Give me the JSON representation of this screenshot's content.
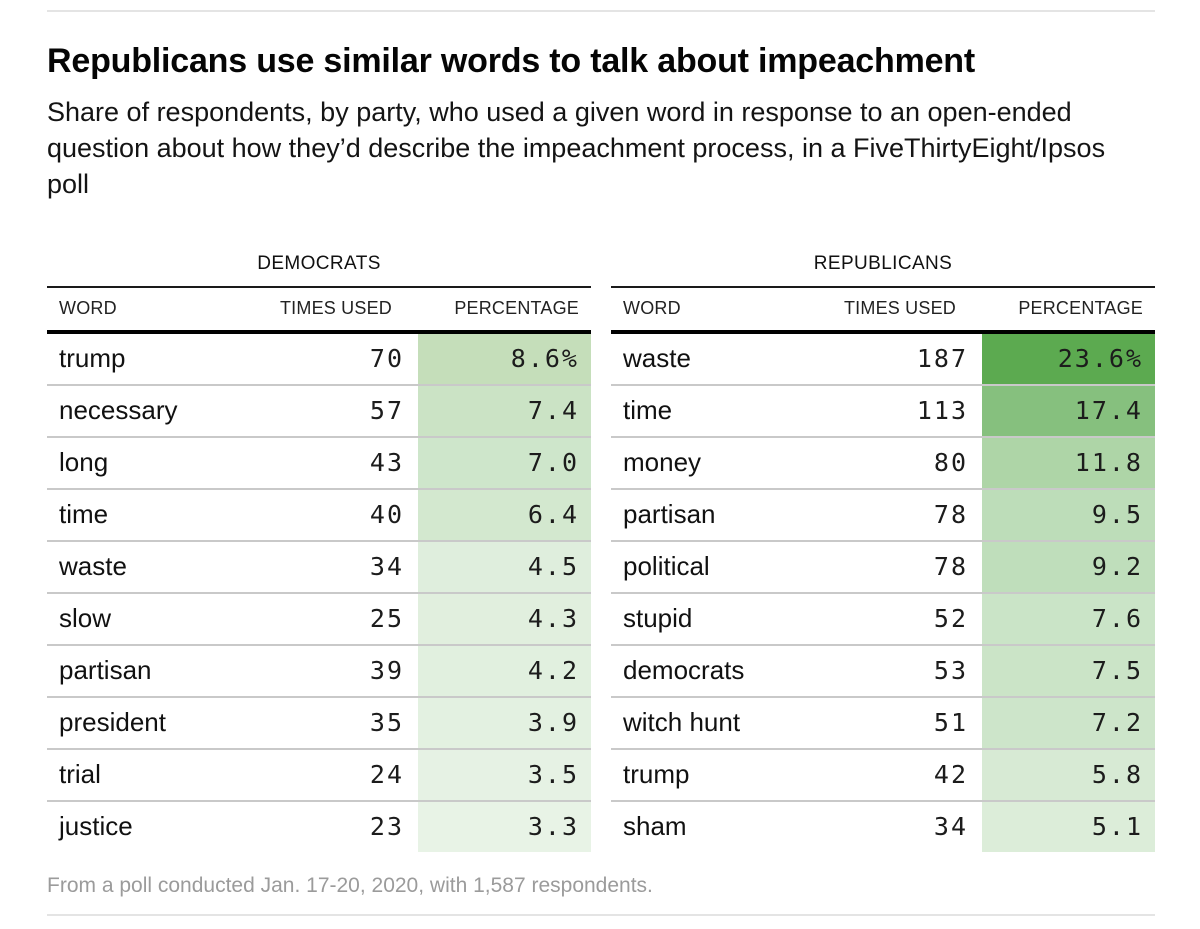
{
  "header": {
    "title": "Republicans use similar words to talk about impeachment",
    "subtitle": "Share of respondents, by party, who used a given word in response to an open-ended question about how they’d describe the impeachment process, in a FiveThirtyEight/Ipsos poll"
  },
  "footer": {
    "note": "From a poll conducted Jan. 17-20, 2020, with 1,587 respondents."
  },
  "tables": [
    {
      "group": "DEMOCRATS",
      "columns": [
        "WORD",
        "TIMES USED",
        "PERCENTAGE"
      ],
      "rows": [
        {
          "word": "trump",
          "times": "70",
          "pct": "8.6%",
          "color": "#c5deba"
        },
        {
          "word": "necessary",
          "times": "57",
          "pct": "7.4",
          "color": "#cbe3c5"
        },
        {
          "word": "long",
          "times": "43",
          "pct": "7.0",
          "color": "#cee6cb"
        },
        {
          "word": "time",
          "times": "40",
          "pct": "6.4",
          "color": "#d3e8cf"
        },
        {
          "word": "waste",
          "times": "34",
          "pct": "4.5",
          "color": "#dfeedd"
        },
        {
          "word": "slow",
          "times": "25",
          "pct": "4.3",
          "color": "#e1efde"
        },
        {
          "word": "partisan",
          "times": "39",
          "pct": "4.2",
          "color": "#e1f0df"
        },
        {
          "word": "president",
          "times": "35",
          "pct": "3.9",
          "color": "#e3f1e1"
        },
        {
          "word": "trial",
          "times": "24",
          "pct": "3.5",
          "color": "#e6f2e4"
        },
        {
          "word": "justice",
          "times": "23",
          "pct": "3.3",
          "color": "#e8f3e6"
        }
      ]
    },
    {
      "group": "REPUBLICANS",
      "columns": [
        "WORD",
        "TIMES USED",
        "PERCENTAGE"
      ],
      "rows": [
        {
          "word": "waste",
          "times": "187",
          "pct": "23.6%",
          "color": "#5caa50"
        },
        {
          "word": "time",
          "times": "113",
          "pct": "17.4",
          "color": "#86c07e"
        },
        {
          "word": "money",
          "times": "80",
          "pct": "11.8",
          "color": "#aed5a7"
        },
        {
          "word": "partisan",
          "times": "78",
          "pct": "9.5",
          "color": "#bdddb9"
        },
        {
          "word": "political",
          "times": "78",
          "pct": "9.2",
          "color": "#bfdebb"
        },
        {
          "word": "stupid",
          "times": "52",
          "pct": "7.6",
          "color": "#cae4c7"
        },
        {
          "word": "democrats",
          "times": "53",
          "pct": "7.5",
          "color": "#cbe4c7"
        },
        {
          "word": "witch hunt",
          "times": "51",
          "pct": "7.2",
          "color": "#cde5ca"
        },
        {
          "word": "trump",
          "times": "42",
          "pct": "5.8",
          "color": "#d7ead4"
        },
        {
          "word": "sham",
          "times": "34",
          "pct": "5.1",
          "color": "#dcedd9"
        }
      ]
    }
  ],
  "chart_data": {
    "type": "table",
    "title": "Republicans use similar words to talk about impeachment",
    "subtitle": "Share of respondents, by party, who used a given word in response to an open-ended question about how they’d describe the impeachment process, in a FiveThirtyEight/Ipsos poll",
    "footnote": "From a poll conducted Jan. 17-20, 2020, with 1,587 respondents.",
    "groups": [
      {
        "party": "Democrats",
        "columns": [
          "Word",
          "Times used",
          "Percentage"
        ],
        "rows": [
          [
            "trump",
            70,
            8.6
          ],
          [
            "necessary",
            57,
            7.4
          ],
          [
            "long",
            43,
            7.0
          ],
          [
            "time",
            40,
            6.4
          ],
          [
            "waste",
            34,
            4.5
          ],
          [
            "slow",
            25,
            4.3
          ],
          [
            "partisan",
            39,
            4.2
          ],
          [
            "president",
            35,
            3.9
          ],
          [
            "trial",
            24,
            3.5
          ],
          [
            "justice",
            23,
            3.3
          ]
        ]
      },
      {
        "party": "Republicans",
        "columns": [
          "Word",
          "Times used",
          "Percentage"
        ],
        "rows": [
          [
            "waste",
            187,
            23.6
          ],
          [
            "time",
            113,
            17.4
          ],
          [
            "money",
            80,
            11.8
          ],
          [
            "partisan",
            78,
            9.5
          ],
          [
            "political",
            78,
            9.2
          ],
          [
            "stupid",
            52,
            7.6
          ],
          [
            "democrats",
            53,
            7.5
          ],
          [
            "witch hunt",
            51,
            7.2
          ],
          [
            "trump",
            42,
            5.8
          ],
          [
            "sham",
            34,
            5.1
          ]
        ]
      }
    ],
    "heat_scale": {
      "applies_to": "Percentage",
      "min_color": "#ffffff",
      "max_color": "#5caa50",
      "domain": [
        0,
        23.6
      ]
    },
    "legend_position": "none",
    "grid": "row-separators"
  }
}
